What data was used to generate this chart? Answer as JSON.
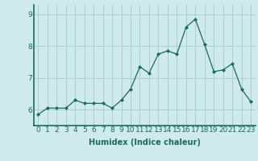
{
  "x": [
    0,
    1,
    2,
    3,
    4,
    5,
    6,
    7,
    8,
    9,
    10,
    11,
    12,
    13,
    14,
    15,
    16,
    17,
    18,
    19,
    20,
    21,
    22,
    23
  ],
  "y": [
    5.85,
    6.05,
    6.05,
    6.05,
    6.3,
    6.2,
    6.2,
    6.2,
    6.05,
    6.3,
    6.65,
    7.35,
    7.15,
    7.75,
    7.85,
    7.75,
    8.6,
    8.85,
    8.05,
    7.2,
    7.25,
    7.45,
    6.65,
    6.25
  ],
  "xlabel": "Humidex (Indice chaleur)",
  "ylim": [
    5.5,
    9.3
  ],
  "xlim": [
    -0.5,
    23.5
  ],
  "yticks": [
    6,
    7,
    8,
    9
  ],
  "line_color": "#1a6b5a",
  "marker": "D",
  "marker_size": 2.0,
  "bg_color": "#ceeaea",
  "grid_color": "#aacfcf",
  "axis_color": "#1a6b5a",
  "label_fontsize": 7,
  "tick_fontsize": 6.5
}
